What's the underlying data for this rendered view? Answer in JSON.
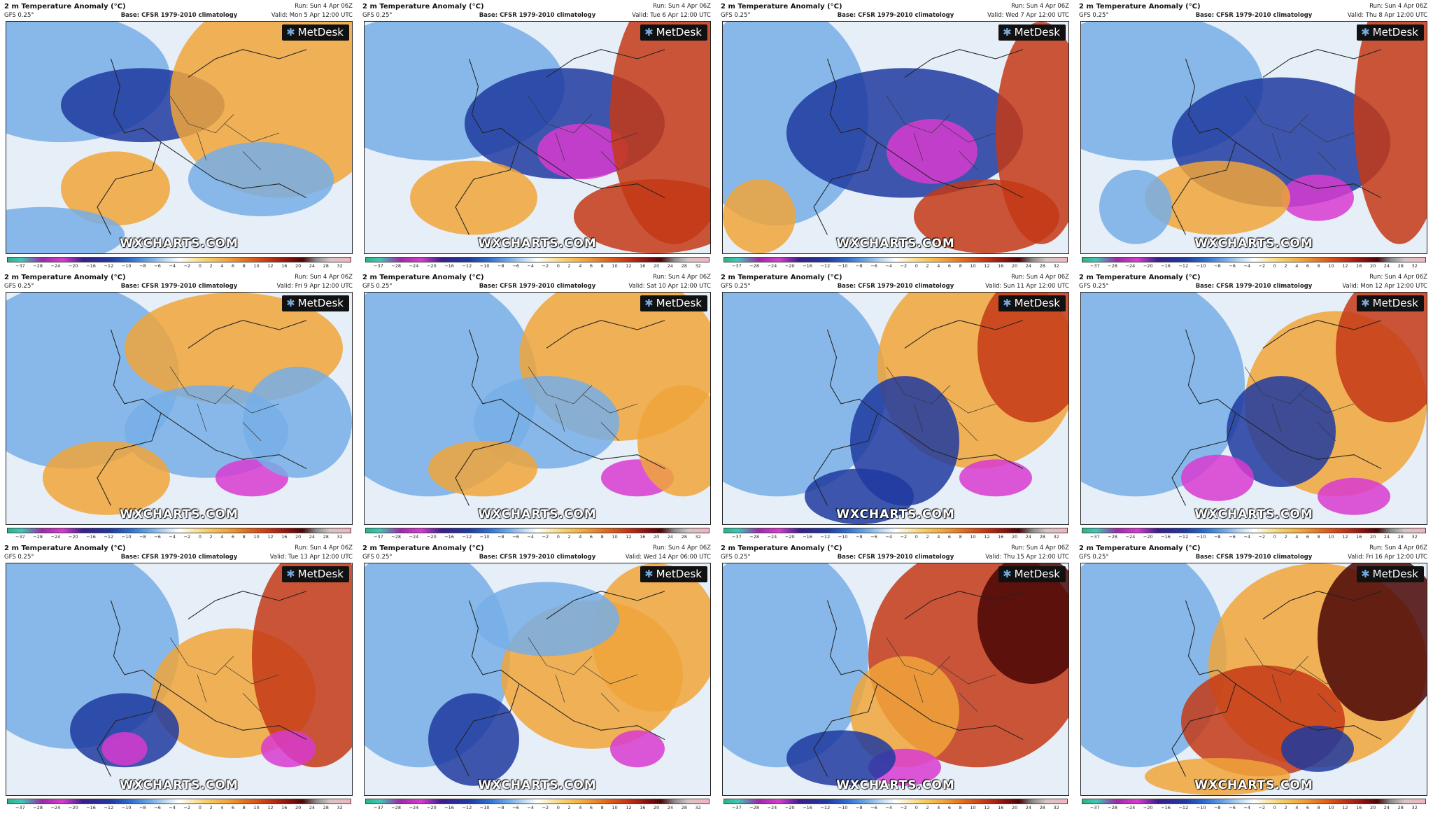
{
  "panels": [
    {
      "title": "2 m Temperature Anomaly (°C)",
      "model": "GFS 0.25°",
      "base": "Base: CFSR 1979-2010 climatology",
      "run": "Run: Sun 4 Apr 06Z",
      "valid": "Valid: Mon 5 Apr 12:00 UTC",
      "logo": "MetDesk",
      "watermark": "WXCHARTS.COM"
    },
    {
      "title": "2 m Temperature Anomaly (°C)",
      "model": "GFS 0.25°",
      "base": "Base: CFSR 1979-2010 climatology",
      "run": "Run: Sun 4 Apr 06Z",
      "valid": "Valid: Tue 6 Apr 12:00 UTC",
      "logo": "MetDesk",
      "watermark": "WXCHARTS.COM"
    },
    {
      "title": "2 m Temperature Anomaly (°C)",
      "model": "GFS 0.25°",
      "base": "Base: CFSR 1979-2010 climatology",
      "run": "Run: Sun 4 Apr 06Z",
      "valid": "Valid: Wed 7 Apr 12:00 UTC",
      "logo": "MetDesk",
      "watermark": "WXCHARTS.COM"
    },
    {
      "title": "2 m Temperature Anomaly (°C)",
      "model": "GFS 0.25°",
      "base": "Base: CFSR 1979-2010 climatology",
      "run": "Run: Sun 4 Apr 06Z",
      "valid": "Valid: Thu 8 Apr 12:00 UTC",
      "logo": "MetDesk",
      "watermark": "WXCHARTS.COM"
    },
    {
      "title": "2 m Temperature Anomaly (°C)",
      "model": "GFS 0.25°",
      "base": "Base: CFSR 1979-2010 climatology",
      "run": "Run: Sun 4 Apr 06Z",
      "valid": "Valid: Fri 9 Apr 12:00 UTC",
      "logo": "MetDesk",
      "watermark": "WXCHARTS.COM"
    },
    {
      "title": "2 m Temperature Anomaly (°C)",
      "model": "GFS 0.25°",
      "base": "Base: CFSR 1979-2010 climatology",
      "run": "Run: Sun 4 Apr 06Z",
      "valid": "Valid: Sat 10 Apr 12:00 UTC",
      "logo": "MetDesk",
      "watermark": "WXCHARTS.COM"
    },
    {
      "title": "2 m Temperature Anomaly (°C)",
      "model": "GFS 0.25°",
      "base": "Base: CFSR 1979-2010 climatology",
      "run": "Run: Sun 4 Apr 06Z",
      "valid": "Valid: Sun 11 Apr 12:00 UTC",
      "logo": "MetDesk",
      "watermark": "WXCHARTS.COM"
    },
    {
      "title": "2 m Temperature Anomaly (°C)",
      "model": "GFS 0.25°",
      "base": "Base: CFSR 1979-2010 climatology",
      "run": "Run: Sun 4 Apr 06Z",
      "valid": "Valid: Mon 12 Apr 12:00 UTC",
      "logo": "MetDesk",
      "watermark": "WXCHARTS.COM"
    },
    {
      "title": "2 m Temperature Anomaly (°C)",
      "model": "GFS 0.25°",
      "base": "Base: CFSR 1979-2010 climatology",
      "run": "Run: Sun 4 Apr 06Z",
      "valid": "Valid: Tue 13 Apr 12:00 UTC",
      "logo": "MetDesk",
      "watermark": "WXCHARTS.COM"
    },
    {
      "title": "2 m Temperature Anomaly (°C)",
      "model": "GFS 0.25°",
      "base": "Base: CFSR 1979-2010 climatology",
      "run": "Run: Sun 4 Apr 06Z",
      "valid": "Valid: Wed 14 Apr 06:00 UTC",
      "logo": "MetDesk",
      "watermark": "WXCHARTS.COM"
    },
    {
      "title": "2 m Temperature Anomaly (°C)",
      "model": "GFS 0.25°",
      "base": "Base: CFSR 1979-2010 climatology",
      "run": "Run: Sun 4 Apr 06Z",
      "valid": "Valid: Thu 15 Apr 12:00 UTC",
      "logo": "MetDesk",
      "watermark": "WXCHARTS.COM"
    },
    {
      "title": "2 m Temperature Anomaly (°C)",
      "model": "GFS 0.25°",
      "base": "Base: CFSR 1979-2010 climatology",
      "run": "Run: Sun 4 Apr 06Z",
      "valid": "Valid: Fri 16 Apr 12:00 UTC",
      "logo": "MetDesk",
      "watermark": "WXCHARTS.COM"
    }
  ],
  "colorbar_ticks": [
    "−37",
    "−28",
    "−24",
    "−20",
    "−16",
    "−12",
    "−10",
    "−8",
    "−6",
    "−4",
    "−2",
    "0",
    "2",
    "4",
    "6",
    "8",
    "10",
    "12",
    "16",
    "20",
    "24",
    "28",
    "32"
  ],
  "colors": {
    "cold_extreme": "#d83bd0",
    "cold": "#1f3aa0",
    "cool": "#76aee6",
    "neutral": "#ffffff",
    "warm": "#f0a53a",
    "hot": "#c43815",
    "hot_extreme": "#4a0606"
  }
}
